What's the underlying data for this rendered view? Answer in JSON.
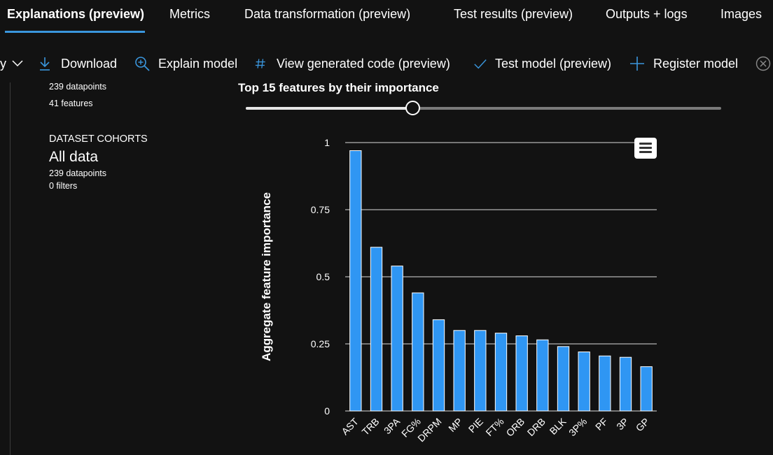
{
  "tabs": [
    {
      "label": "Explanations (preview)",
      "active": true
    },
    {
      "label": "Metrics"
    },
    {
      "label": "Data transformation (preview)"
    },
    {
      "label": "Test results (preview)"
    },
    {
      "label": "Outputs + logs"
    },
    {
      "label": "Images"
    }
  ],
  "toolbar": {
    "partial_label": "y",
    "download": "Download",
    "explain_model": "Explain model",
    "view_code": "View generated code (preview)",
    "test_model": "Test model (preview)",
    "register_model": "Register model"
  },
  "left_panel": {
    "datapoints_top": "239 datapoints",
    "features": "41 features",
    "cohorts_heading": "DATASET COHORTS",
    "cohort_name": "All data",
    "cohort_datapoints": "239 datapoints",
    "cohort_filters": "0 filters"
  },
  "slider": {
    "title": "Top 15 features by their importance",
    "value": 15,
    "fraction": 0.35
  },
  "colors": {
    "background": "#121212",
    "bar": "#2f96f3",
    "accent": "#3a96dd"
  },
  "chart_data": {
    "type": "bar",
    "categories": [
      "AST",
      "TRB",
      "3PA",
      "FG%",
      "DRPM",
      "MP",
      "PIE",
      "FT%",
      "ORB",
      "DRB",
      "BLK",
      "3P%",
      "PF",
      "3P",
      "GP"
    ],
    "values": [
      0.97,
      0.61,
      0.54,
      0.44,
      0.34,
      0.3,
      0.3,
      0.29,
      0.28,
      0.265,
      0.24,
      0.22,
      0.205,
      0.2,
      0.165
    ],
    "ylabel": "Aggregate feature importance",
    "ylim": [
      0,
      1
    ],
    "yticks": [
      0,
      0.25,
      0.5,
      0.75,
      1
    ],
    "ytick_labels": [
      "0",
      "0.25",
      "0.5",
      "0.75",
      "1"
    ],
    "grid": true
  }
}
